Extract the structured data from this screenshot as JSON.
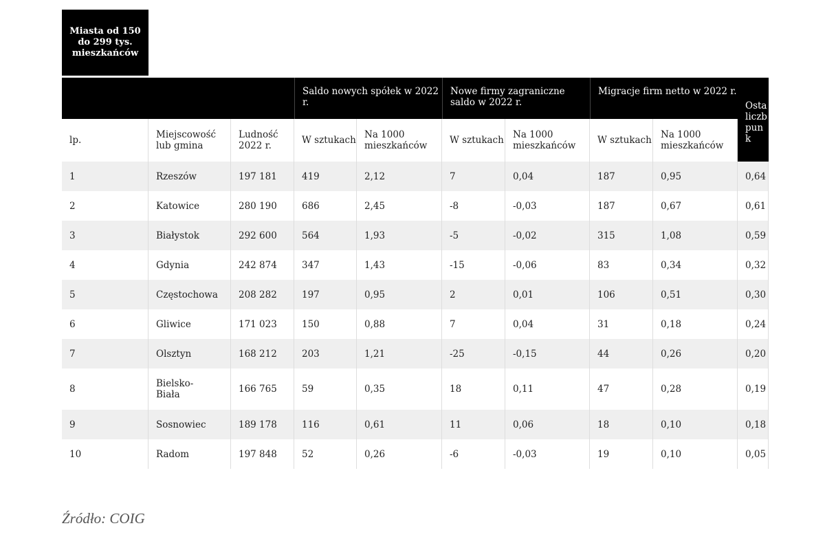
{
  "title_box": "Miasta od 150 do 299 tys. mieszkańców",
  "header": {
    "groups": [
      "Saldo nowych spółek w 2022 r.",
      "Nowe firmy zagraniczne saldo w 2022 r.",
      "Migracje firm netto w 2022 r."
    ],
    "last": "Osta liczb punk"
  },
  "columns": [
    "lp.",
    "Miejscowość lub gmina",
    "Ludność 2022 r.",
    "W sztukach",
    "Na 1000 mieszkańców",
    "W sztukach",
    "Na 1000 mieszkańców",
    "W sztukach",
    "Na 1000 mieszkańców"
  ],
  "rows": [
    [
      "1",
      "Rzeszów",
      "197 181",
      "419",
      "2,12",
      "7",
      "0,04",
      "187",
      "0,95",
      "0,64"
    ],
    [
      "2",
      "Katowice",
      "280 190",
      "686",
      "2,45",
      "-8",
      "-0,03",
      "187",
      "0,67",
      "0,61"
    ],
    [
      "3",
      "Białystok",
      "292 600",
      "564",
      "1,93",
      "-5",
      "-0,02",
      "315",
      "1,08",
      "0,59"
    ],
    [
      "4",
      "Gdynia",
      "242 874",
      "347",
      "1,43",
      "-15",
      "-0,06",
      "83",
      "0,34",
      "0,32"
    ],
    [
      "5",
      "Częstochowa",
      "208 282",
      "197",
      "0,95",
      "2",
      "0,01",
      "106",
      "0,51",
      "0,30"
    ],
    [
      "6",
      "Gliwice",
      "171 023",
      "150",
      "0,88",
      "7",
      "0,04",
      "31",
      "0,18",
      "0,24"
    ],
    [
      "7",
      "Olsztyn",
      "168 212",
      "203",
      "1,21",
      "-25",
      "-0,15",
      "44",
      "0,26",
      "0,20"
    ],
    [
      "8",
      "Bielsko-Biała",
      "166 765",
      "59",
      "0,35",
      "18",
      "0,11",
      "47",
      "0,28",
      "0,19"
    ],
    [
      "9",
      "Sosnowiec",
      "189 178",
      "116",
      "0,61",
      "11",
      "0,06",
      "18",
      "0,10",
      "0,18"
    ],
    [
      "10",
      "Radom",
      "197 848",
      "52",
      "0,26",
      "-6",
      "-0,03",
      "19",
      "0,10",
      "0,05"
    ]
  ],
  "source": "Źródło: COIG"
}
